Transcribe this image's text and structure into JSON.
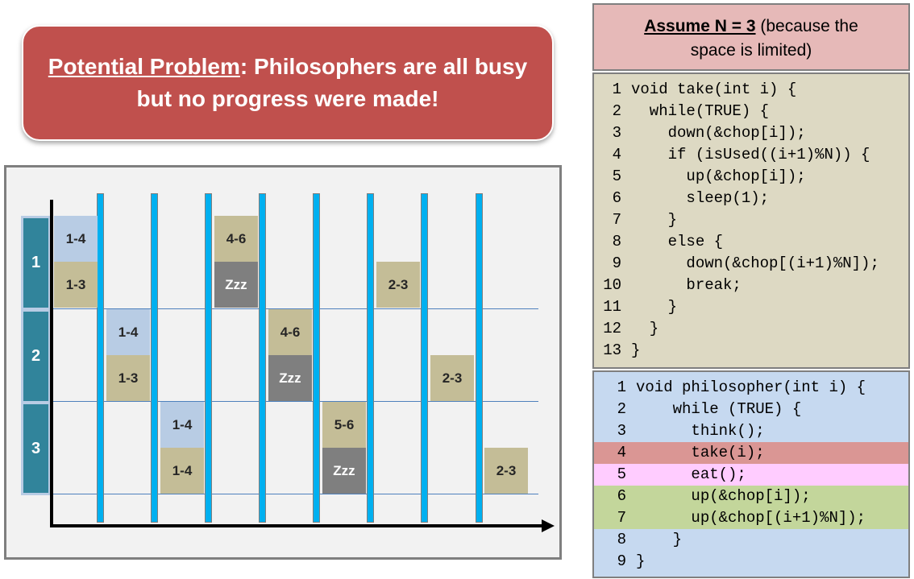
{
  "callout": {
    "title_underlined": "Potential Problem",
    "title_rest": ": Philosophers are all busy",
    "line2": "but no progress were made!"
  },
  "diagram": {
    "rows": [
      "1",
      "2",
      "3"
    ],
    "cells": [
      {
        "row": 0,
        "col": 0,
        "part": "top",
        "text": "1-4",
        "color": "blue"
      },
      {
        "row": 0,
        "col": 0,
        "part": "bottom",
        "text": "1-3",
        "color": "tan"
      },
      {
        "row": 0,
        "col": 3,
        "part": "top",
        "text": "4-6",
        "color": "tan"
      },
      {
        "row": 0,
        "col": 3,
        "part": "bottom",
        "text": "Zzz",
        "color": "grey"
      },
      {
        "row": 0,
        "col": 6,
        "part": "bottom",
        "text": "2-3",
        "color": "tan"
      },
      {
        "row": 1,
        "col": 1,
        "part": "top",
        "text": "1-4",
        "color": "blue"
      },
      {
        "row": 1,
        "col": 1,
        "part": "bottom",
        "text": "1-3",
        "color": "tan"
      },
      {
        "row": 1,
        "col": 4,
        "part": "top",
        "text": "4-6",
        "color": "tan"
      },
      {
        "row": 1,
        "col": 4,
        "part": "bottom",
        "text": "Zzz",
        "color": "grey"
      },
      {
        "row": 1,
        "col": 7,
        "part": "bottom",
        "text": "2-3",
        "color": "tan"
      },
      {
        "row": 2,
        "col": 2,
        "part": "top",
        "text": "1-4",
        "color": "blue"
      },
      {
        "row": 2,
        "col": 2,
        "part": "bottom",
        "text": "1-4",
        "color": "tan"
      },
      {
        "row": 2,
        "col": 5,
        "part": "top",
        "text": "5-6",
        "color": "tan"
      },
      {
        "row": 2,
        "col": 5,
        "part": "bottom",
        "text": "Zzz",
        "color": "grey"
      },
      {
        "row": 2,
        "col": 8,
        "part": "bottom",
        "text": "2-3",
        "color": "tan"
      }
    ],
    "colors": {
      "blue": "#b8cce4",
      "tan": "#c4bd97",
      "grey": "#7f7f7f",
      "bar": "#00b0f0",
      "label": "#31849b"
    }
  },
  "assume": {
    "bold": "Assume N = 3",
    "rest1": " (because the",
    "line2": "space is limited)"
  },
  "take_code": [
    {
      "n": "1",
      "code": "void take(int i) {"
    },
    {
      "n": "2",
      "code": "  while(TRUE) {"
    },
    {
      "n": "3",
      "code": "    down(&chop[i]);"
    },
    {
      "n": "4",
      "code": "    if (isUsed((i+1)%N)) {"
    },
    {
      "n": "5",
      "code": "      up(&chop[i]);"
    },
    {
      "n": "6",
      "code": "      sleep(1);"
    },
    {
      "n": "7",
      "code": "    }"
    },
    {
      "n": "8",
      "code": "    else {"
    },
    {
      "n": "9",
      "code": "      down(&chop[(i+1)%N]);"
    },
    {
      "n": "10",
      "code": "      break;"
    },
    {
      "n": "11",
      "code": "    }"
    },
    {
      "n": "12",
      "code": "  }"
    },
    {
      "n": "13",
      "code": "}"
    }
  ],
  "philosopher_code": [
    {
      "n": "1",
      "code": "void philosopher(int i) {",
      "hl": ""
    },
    {
      "n": "2",
      "code": "    while (TRUE) {",
      "hl": ""
    },
    {
      "n": "3",
      "code": "      think();",
      "hl": ""
    },
    {
      "n": "4",
      "code": "      take(i);",
      "hl": "red"
    },
    {
      "n": "5",
      "code": "      eat();",
      "hl": "pink"
    },
    {
      "n": "6",
      "code": "      up(&chop[i]);",
      "hl": "green"
    },
    {
      "n": "7",
      "code": "      up(&chop[(i+1)%N]);",
      "hl": "green"
    },
    {
      "n": "8",
      "code": "    }",
      "hl": ""
    },
    {
      "n": "9",
      "code": "}",
      "hl": ""
    }
  ]
}
